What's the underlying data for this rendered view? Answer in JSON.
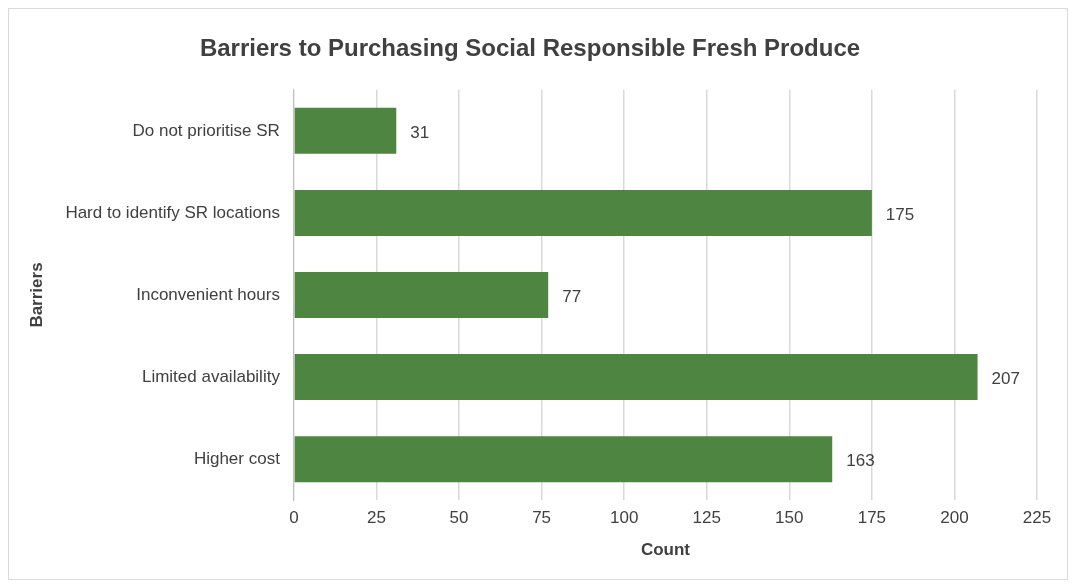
{
  "chart_data": {
    "type": "bar",
    "orientation": "horizontal",
    "title": "Barriers to Purchasing Social Responsible Fresh Produce",
    "xlabel": "Count",
    "ylabel": "Barriers",
    "categories": [
      "Do not prioritise SR",
      "Hard to identify SR locations",
      "Inconvenient hours",
      "Limited availability",
      "Higher cost"
    ],
    "values": [
      31,
      175,
      77,
      207,
      163
    ],
    "color": "#4e8540",
    "xlim": [
      0,
      225
    ],
    "xticks": [
      0,
      25,
      50,
      75,
      100,
      125,
      150,
      175,
      200,
      225
    ],
    "grid": "x",
    "data_labels": true,
    "legend": false
  }
}
